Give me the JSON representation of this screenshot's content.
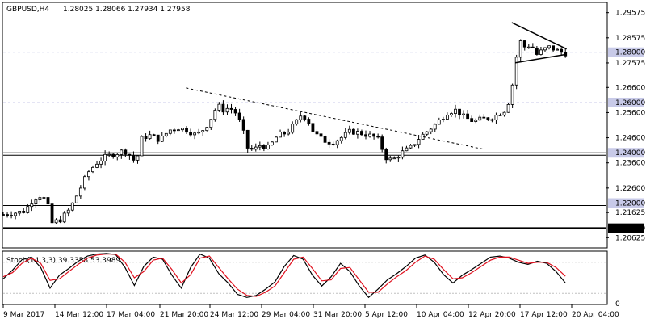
{
  "header": {
    "symbol": "GBPUSD,H4",
    "ohlc": "1.28025 1.28066 1.27934 1.27958"
  },
  "colors": {
    "background": "#ffffff",
    "candle_bull": "#ffffff",
    "candle_bear": "#000000",
    "wick": "#000000",
    "level_line": "#000000",
    "grid_guide": "#c8cae8",
    "stoch_main": "#000000",
    "stoch_signal": "#e0101e",
    "price_badge_bg": "#c8cae8",
    "level_badge_bg": "#000000",
    "level_badge_text": "#ffffff"
  },
  "chart_data": [
    {
      "type": "candlestick",
      "title": "GBPUSD,H4  1.28025 1.28066 1.27934 1.27958",
      "ylim": [
        1.2025,
        1.2995
      ],
      "y_ticks": [
        "1.29575",
        "1.28575",
        "1.27575",
        "1.26600",
        "1.25600",
        "1.24600",
        "1.23600",
        "1.22600",
        "1.21625",
        "1.20625"
      ],
      "x_tick_labels": [
        "9 Mar 2017",
        "14 Mar 12:00",
        "17 Mar 04:00",
        "21 Mar 20:00",
        "24 Mar 12:00",
        "29 Mar 04:00",
        "31 Mar 20:00",
        "5 Apr 12:00",
        "10 Apr 04:00",
        "12 Apr 20:00",
        "17 Apr 12:00",
        "20 Apr 04:00"
      ],
      "price_labels": [
        {
          "text": "1.28000",
          "value": 1.28,
          "style": "badge-light"
        },
        {
          "text": "1.26000",
          "value": 1.26,
          "style": "badge-light"
        },
        {
          "text": "1.24000",
          "value": 1.24,
          "style": "badge-light"
        },
        {
          "text": "1.22000",
          "value": 1.22,
          "style": "badge-light"
        },
        {
          "text": "1.21000",
          "value": 1.21,
          "style": "badge-dark"
        }
      ],
      "horizontal_levels": [
        1.24,
        1.22,
        1.21
      ],
      "guide_lines": [
        1.28,
        1.26
      ],
      "trendlines": [
        {
          "name": "",
          "style": "dashed",
          "points": [
            [
              0.303,
              1.2658
            ],
            [
              0.795,
              1.2415
            ]
          ]
        },
        {
          "name": "",
          "style": "solid",
          "points": [
            [
              0.843,
              1.2918
            ],
            [
              0.934,
              1.2813
            ]
          ]
        },
        {
          "name": "",
          "style": "solid",
          "points": [
            [
              0.849,
              1.2758
            ],
            [
              0.934,
              1.2792
            ]
          ]
        }
      ],
      "close_path": [
        [
          0.0,
          1.2155
        ],
        [
          0.015,
          1.216
        ],
        [
          0.035,
          1.2168
        ],
        [
          0.05,
          1.2215
        ],
        [
          0.06,
          1.223
        ],
        [
          0.072,
          1.2212
        ],
        [
          0.08,
          1.212
        ],
        [
          0.095,
          1.2135
        ],
        [
          0.11,
          1.2175
        ],
        [
          0.125,
          1.2245
        ],
        [
          0.14,
          1.232
        ],
        [
          0.155,
          1.236
        ],
        [
          0.17,
          1.2385
        ],
        [
          0.185,
          1.2395
        ],
        [
          0.2,
          1.241
        ],
        [
          0.21,
          1.239
        ],
        [
          0.22,
          1.236
        ],
        [
          0.23,
          1.246
        ],
        [
          0.245,
          1.247
        ],
        [
          0.26,
          1.245
        ],
        [
          0.275,
          1.249
        ],
        [
          0.29,
          1.25
        ],
        [
          0.305,
          1.249
        ],
        [
          0.32,
          1.247
        ],
        [
          0.335,
          1.25
        ],
        [
          0.345,
          1.254
        ],
        [
          0.355,
          1.259
        ],
        [
          0.365,
          1.257
        ],
        [
          0.375,
          1.258
        ],
        [
          0.385,
          1.256
        ],
        [
          0.395,
          1.251
        ],
        [
          0.405,
          1.242
        ],
        [
          0.415,
          1.241
        ],
        [
          0.425,
          1.243
        ],
        [
          0.44,
          1.242
        ],
        [
          0.455,
          1.247
        ],
        [
          0.47,
          1.248
        ],
        [
          0.485,
          1.252
        ],
        [
          0.495,
          1.2555
        ],
        [
          0.505,
          1.253
        ],
        [
          0.515,
          1.248
        ],
        [
          0.53,
          1.245
        ],
        [
          0.545,
          1.244
        ],
        [
          0.56,
          1.246
        ],
        [
          0.575,
          1.2485
        ],
        [
          0.59,
          1.248
        ],
        [
          0.605,
          1.247
        ],
        [
          0.62,
          1.246
        ],
        [
          0.635,
          1.238
        ],
        [
          0.645,
          1.237
        ],
        [
          0.66,
          1.24
        ],
        [
          0.675,
          1.242
        ],
        [
          0.69,
          1.246
        ],
        [
          0.705,
          1.249
        ],
        [
          0.72,
          1.252
        ],
        [
          0.735,
          1.256
        ],
        [
          0.75,
          1.257
        ],
        [
          0.765,
          1.254
        ],
        [
          0.78,
          1.2525
        ],
        [
          0.795,
          1.2535
        ],
        [
          0.81,
          1.254
        ],
        [
          0.825,
          1.256
        ],
        [
          0.835,
          1.2575
        ],
        [
          0.845,
          1.268
        ],
        [
          0.855,
          1.285
        ],
        [
          0.865,
          1.282
        ],
        [
          0.875,
          1.283
        ],
        [
          0.885,
          1.279
        ],
        [
          0.895,
          1.281
        ],
        [
          0.905,
          1.282
        ],
        [
          0.915,
          1.281
        ],
        [
          0.925,
          1.28
        ],
        [
          0.932,
          1.2796
        ]
      ]
    },
    {
      "type": "line",
      "title": "Stoch(14,3,3) 39.3358 53.3989",
      "ylim": [
        0,
        100
      ],
      "y_ticks": [
        "0"
      ],
      "series": [
        {
          "name": "",
          "color": "#000000",
          "values": [
            48,
            65,
            85,
            90,
            70,
            30,
            55,
            68,
            82,
            92,
            96,
            97,
            95,
            70,
            35,
            72,
            90,
            86,
            55,
            30,
            70,
            96,
            88,
            58,
            40,
            18,
            12,
            16,
            28,
            42,
            72,
            93,
            86,
            55,
            34,
            52,
            78,
            62,
            34,
            12,
            28,
            46,
            58,
            72,
            88,
            94,
            80,
            56,
            40,
            55,
            66,
            78,
            90,
            92,
            88,
            80,
            76,
            82,
            78,
            62,
            40
          ]
        },
        {
          "name": "",
          "color": "#e0101e",
          "values": [
            52,
            60,
            78,
            88,
            78,
            45,
            48,
            62,
            76,
            88,
            94,
            96,
            96,
            80,
            50,
            62,
            84,
            88,
            66,
            40,
            56,
            88,
            92,
            70,
            48,
            28,
            16,
            14,
            22,
            34,
            60,
            86,
            90,
            68,
            44,
            46,
            68,
            70,
            46,
            22,
            22,
            38,
            52,
            64,
            80,
            92,
            86,
            66,
            48,
            50,
            60,
            72,
            84,
            90,
            90,
            84,
            78,
            80,
            80,
            70,
            53
          ]
        }
      ]
    }
  ]
}
